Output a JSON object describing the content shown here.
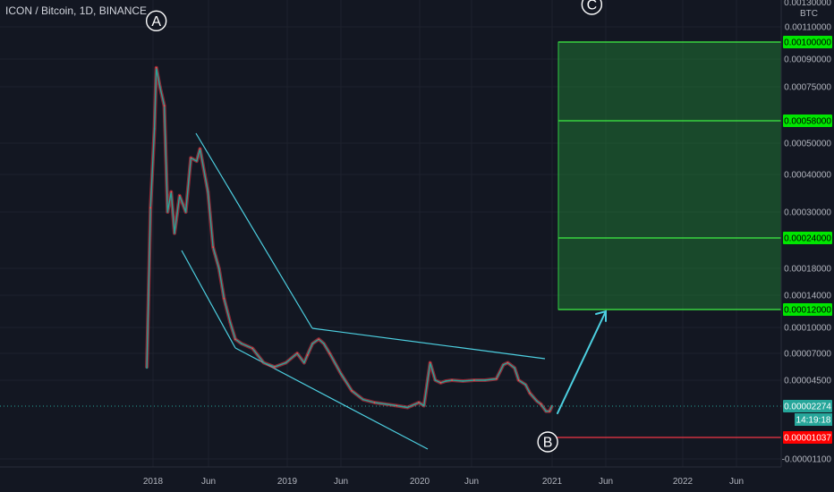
{
  "header": {
    "title": "ICON / Bitcoin, 1D, BINANCE"
  },
  "axis": {
    "currency": "BTC",
    "price_label_top": "0.00130000"
  },
  "chart_data": {
    "type": "line",
    "title": "ICON / Bitcoin, 1D, BINANCE",
    "xlabel": "",
    "ylabel": "BTC",
    "log_scale": true,
    "grid": true,
    "x_ticks": [
      "2018",
      "Jun",
      "2019",
      "Jun",
      "2020",
      "Jun",
      "2021",
      "Jun",
      "2022",
      "Jun"
    ],
    "y_ticks": [
      "0.00110000",
      "0.00090000",
      "0.00075000",
      "0.00050000",
      "0.00040000",
      "0.00030000",
      "0.00018000",
      "0.00014000",
      "0.00010000",
      "0.00007000",
      "0.00004500",
      "-0.00001100"
    ],
    "price_series": {
      "name": "ICX/BTC",
      "dates": [
        "2017-12-15",
        "2017-12-25",
        "2018-01-05",
        "2018-01-10",
        "2018-01-20",
        "2018-02-01",
        "2018-02-10",
        "2018-02-20",
        "2018-03-01",
        "2018-03-15",
        "2018-04-01",
        "2018-04-15",
        "2018-05-01",
        "2018-05-10",
        "2018-06-01",
        "2018-06-15",
        "2018-07-01",
        "2018-07-15",
        "2018-08-01",
        "2018-08-15",
        "2018-09-01",
        "2018-10-01",
        "2018-11-01",
        "2018-12-01",
        "2019-01-01",
        "2019-02-01",
        "2019-02-20",
        "2019-03-01",
        "2019-03-15",
        "2019-04-01",
        "2019-04-15",
        "2019-05-01",
        "2019-06-01",
        "2019-07-01",
        "2019-08-01",
        "2019-09-01",
        "2019-10-01",
        "2019-11-01",
        "2019-12-01",
        "2020-01-01",
        "2020-01-15",
        "2020-02-01",
        "2020-02-15",
        "2020-03-01",
        "2020-03-15",
        "2020-04-01",
        "2020-05-01",
        "2020-06-01",
        "2020-07-01",
        "2020-08-01",
        "2020-08-20",
        "2020-09-01",
        "2020-09-20",
        "2020-10-01",
        "2020-10-20",
        "2020-11-01",
        "2020-11-20",
        "2020-12-01",
        "2020-12-15",
        "2020-12-25",
        "2021-01-01"
      ],
      "values": [
        5.5e-05,
        0.00031,
        0.00055,
        0.00085,
        0.00075,
        0.00065,
        0.0003,
        0.00035,
        0.00025,
        0.00034,
        0.0003,
        0.00045,
        0.00044,
        0.00048,
        0.00035,
        0.00022,
        0.00018,
        0.000135,
        0.000105,
        8.5e-05,
        8e-05,
        7.5e-05,
        6e-05,
        5.6e-05,
        6e-05,
        7e-05,
        6e-05,
        6.8e-05,
        8e-05,
        8.5e-05,
        8e-05,
        7e-05,
        5e-05,
        3.4e-05,
        2.7e-05,
        2.5e-05,
        2.4e-05,
        2.3e-05,
        2.2e-05,
        2.5e-05,
        2.3e-05,
        6e-05,
        4.5e-05,
        4.2e-05,
        4.4e-05,
        4.5e-05,
        4.4e-05,
        4.5e-05,
        4.5e-05,
        4.6e-05,
        5.8e-05,
        6e-05,
        5.5e-05,
        4.5e-05,
        4e-05,
        3.2e-05,
        2.6e-05,
        2.4e-05,
        2e-05,
        2e-05,
        2.3e-05
      ]
    },
    "annotations": [
      {
        "label": "A",
        "date": "2018-01-10",
        "price": 0.00115
      },
      {
        "label": "B",
        "date": "2020-12-20",
        "price": 8.5e-06
      },
      {
        "label": "C",
        "date": "2021-04-20",
        "price": 0.00155
      }
    ],
    "target_levels": [
      {
        "label": "0.00100000",
        "price": 0.001
      },
      {
        "label": "0.00058000",
        "price": 0.00058
      },
      {
        "label": "0.00024000",
        "price": 0.00024
      },
      {
        "label": "0.00012000",
        "price": 0.00012
      }
    ],
    "current_price": {
      "label": "0.00002274",
      "price": 2.274e-05,
      "countdown": "14:19:18"
    },
    "stop_level": {
      "label": "0.00001037",
      "price": 1.037e-05
    }
  }
}
